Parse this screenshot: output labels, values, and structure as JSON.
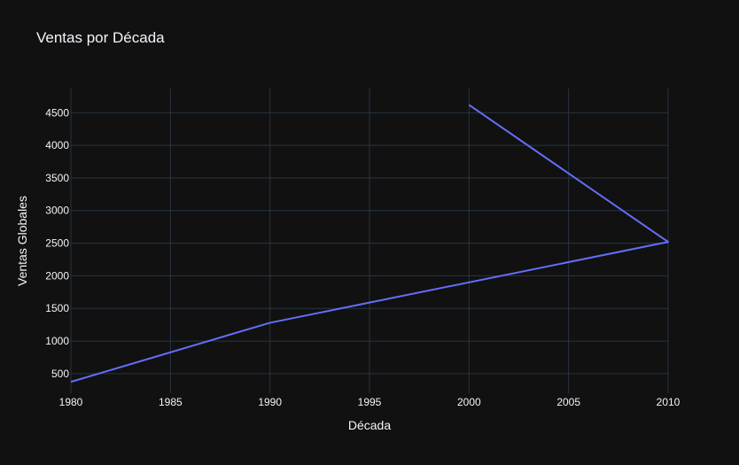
{
  "chart_data": {
    "type": "line",
    "title": "Ventas por Década",
    "xlabel": "Década",
    "ylabel": "Ventas Globales",
    "x": [
      1980,
      1990,
      2010,
      2000
    ],
    "series": [
      {
        "values": [
          375,
          1280,
          2520,
          4620
        ]
      }
    ],
    "xlim": [
      1980,
      2010
    ],
    "ylim": [
      200,
      4870
    ],
    "xticks": [
      1980,
      1985,
      1990,
      1995,
      2000,
      2005,
      2010
    ],
    "yticks": [
      500,
      1000,
      1500,
      2000,
      2500,
      3000,
      3500,
      4000,
      4500
    ],
    "grid": true,
    "colors": {
      "background": "#111111",
      "grid": "#283442",
      "line": "#636efa",
      "text": "#f2f5fa"
    }
  }
}
